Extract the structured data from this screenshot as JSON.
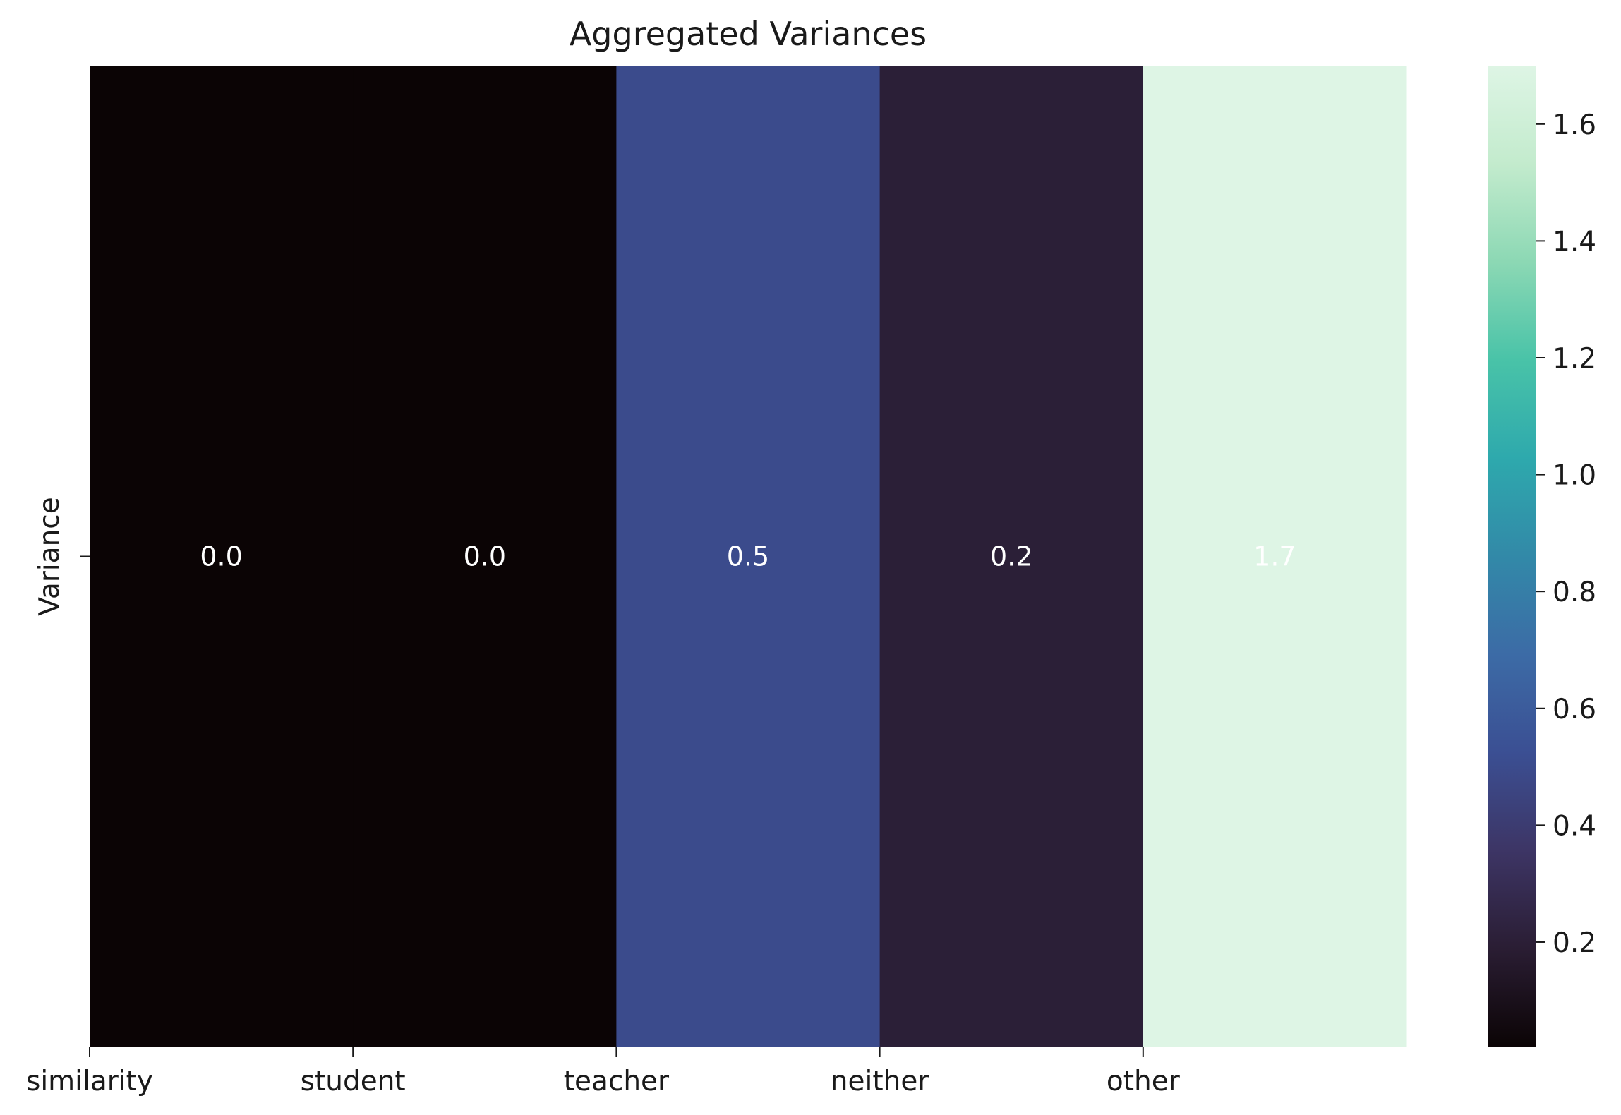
{
  "chart_data": {
    "type": "heatmap",
    "title": "Aggregated Variances",
    "xlabel": "",
    "ylabel": "",
    "x_categories": [
      "similarity",
      "student",
      "teacher",
      "neither",
      "other"
    ],
    "y_categories": [
      "Variance"
    ],
    "values": [
      [
        0.02,
        0.02,
        0.5,
        0.2,
        1.7
      ]
    ],
    "value_labels": [
      "0.0",
      "0.0",
      "0.5",
      "0.2",
      "1.7"
    ],
    "colorbar": {
      "range": [
        0.02,
        1.7
      ],
      "ticks": [
        0.2,
        0.4,
        0.6,
        0.8,
        1.0,
        1.2,
        1.4,
        1.6
      ],
      "tick_labels": [
        "0.2",
        "0.4",
        "0.6",
        "0.8",
        "1.0",
        "1.2",
        "1.4",
        "1.6"
      ],
      "colormap": "mako",
      "colormap_stops": [
        "#0b0405",
        "#2a1d33",
        "#3d3565",
        "#3b4f93",
        "#3c6ba6",
        "#3289a8",
        "#2ea9ad",
        "#49c3a8",
        "#8cd8b4",
        "#c3ebcd",
        "#def5e5"
      ]
    }
  }
}
